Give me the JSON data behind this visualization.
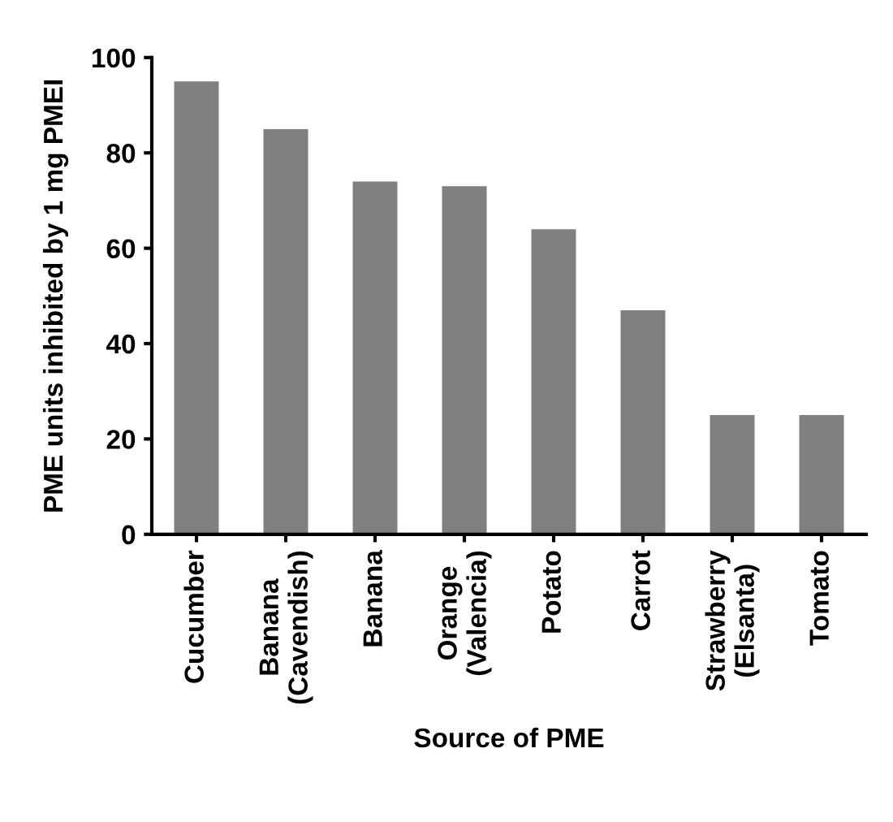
{
  "chart_data": {
    "type": "bar",
    "xlabel": "Source of PME",
    "ylabel": "PME units inhibited by 1 mg PMEI",
    "categories": [
      "Cucumber",
      "Banana\n(Cavendish)",
      "Banana",
      "Orange\n(Valencia)",
      "Potato",
      "Carrot",
      "Strawberry\n(Elsanta)",
      "Tomato"
    ],
    "values": [
      95,
      85,
      74,
      73,
      64,
      47,
      25,
      25
    ],
    "color": "#808080",
    "ylim": [
      0,
      100
    ],
    "yticks": [
      0,
      20,
      40,
      60,
      80,
      100
    ],
    "grid": false
  }
}
